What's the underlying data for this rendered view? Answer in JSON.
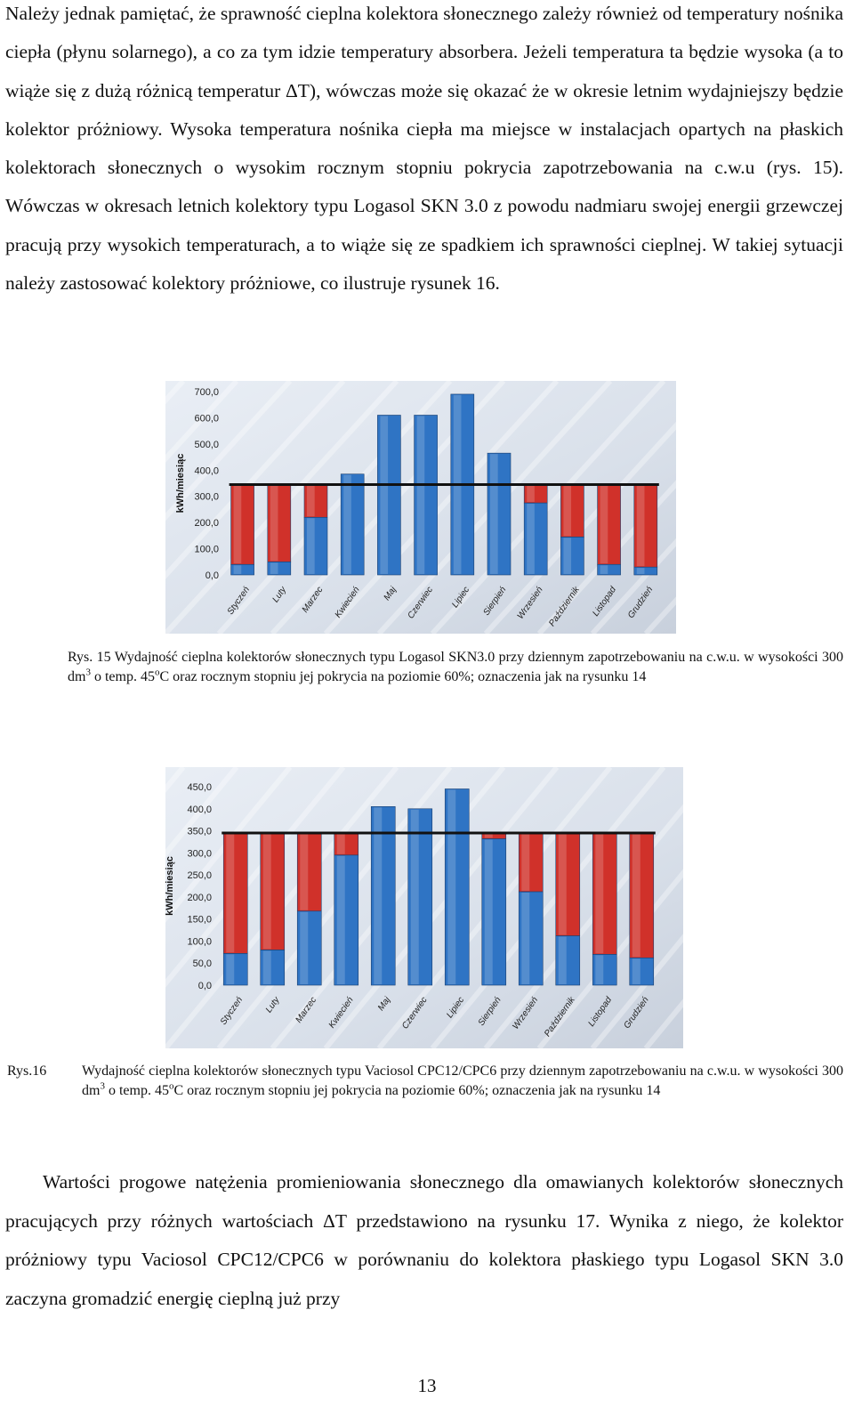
{
  "paragraph_1": "Należy jednak pamiętać, że sprawność cieplna kolektora słonecznego zależy również od temperatury nośnika ciepła (płynu solarnego), a co za tym idzie temperatury absorbera. Jeżeli temperatura ta będzie wysoka (a to wiąże się z dużą różnicą temperatur ΔT), wówczas może się okazać że w okresie letnim wydajniejszy będzie kolektor próżniowy. Wysoka temperatura nośnika ciepła ma miejsce w instalacjach opartych na płaskich kolektorach słonecznych o wysokim rocznym stopniu pokrycia zapotrzebowania na c.w.u (rys. 15). Wówczas w okresach letnich kolektory typu  Logasol SKN 3.0 z powodu nadmiaru swojej energii grzewczej pracują przy wysokich temperaturach, a to wiąże się ze spadkiem ich sprawności cieplnej. W takiej sytuacji należy zastosować kolektory próżniowe, co ilustruje rysunek 16.",
  "caption_1": {
    "part1": "Rys. 15 Wydajność cieplna kolektorów słonecznych typu Logasol SKN3.0 przy dziennym zapotrzebowaniu na c.w.u. w wysokości 300 dm",
    "sup1": "3",
    "part2": " o temp.  45",
    "sup2": "o",
    "part3": "C oraz rocznym stopniu jej pokrycia na poziomie 60%; oznaczenia jak na rysunku 14"
  },
  "caption_2": {
    "label": "Rys.16",
    "part1": "Wydajność cieplna kolektorów słonecznych typu Vaciosol CPC12/CPC6 przy dziennym zapotrzebowaniu na c.w.u. w wysokości 300 dm",
    "sup1": "3",
    "part2": " o temp.  45",
    "sup2": "o",
    "part3": "C oraz rocznym stopniu jej pokrycia na poziomie 60%; oznaczenia jak na rysunku 14"
  },
  "paragraph_2": "Wartości progowe natężenia promieniowania słonecznego dla omawianych kolektorów słonecznych pracujących przy różnych wartościach ΔT przedstawiono na rysunku 17. Wynika z niego, że kolektor próżniowy typu Vaciosol CPC12/CPC6 w porównaniu do kolektora płaskiego typu Logasol SKN 3.0 zaczyna gromadzić energię cieplną już przy",
  "page_number": "13",
  "colors": {
    "solar": "#2f74c4",
    "deficit": "#d0312a",
    "demand_line": "#111111"
  },
  "chart_data": [
    {
      "type": "bar",
      "stacked": true,
      "ylabel": "kWh/miesiąc",
      "ylim": [
        0,
        700
      ],
      "yticks": [
        "0,0",
        "100,0",
        "200,0",
        "300,0",
        "400,0",
        "500,0",
        "600,0",
        "700,0"
      ],
      "categories": [
        "Styczeń",
        "Luty",
        "Marzec",
        "Kwiecień",
        "Maj",
        "Czerwiec",
        "Lipiec",
        "Sierpień",
        "Wrzesień",
        "Październik",
        "Listopad",
        "Grudzień"
      ],
      "series": [
        {
          "color": "#2f74c4",
          "values": [
            40,
            50,
            220,
            385,
            610,
            610,
            690,
            465,
            275,
            145,
            40,
            30
          ]
        },
        {
          "color": "#d0312a",
          "values": [
            305,
            295,
            125,
            0,
            0,
            0,
            0,
            0,
            70,
            200,
            305,
            315
          ]
        }
      ],
      "demand": 345
    },
    {
      "type": "bar",
      "stacked": true,
      "ylabel": "kWh/miesiąc",
      "ylim": [
        0,
        450
      ],
      "yticks": [
        "0,0",
        "50,0",
        "100,0",
        "150,0",
        "200,0",
        "250,0",
        "300,0",
        "350,0",
        "400,0",
        "450,0"
      ],
      "categories": [
        "Styczeń",
        "Luty",
        "Marzec",
        "Kwiecień",
        "Maj",
        "Czerwiec",
        "Lipiec",
        "Sierpień",
        "Wrzesień",
        "Październik",
        "Listopad",
        "Grudzień"
      ],
      "series": [
        {
          "color": "#2f74c4",
          "values": [
            72,
            80,
            168,
            295,
            405,
            400,
            445,
            332,
            212,
            112,
            70,
            62
          ]
        },
        {
          "color": "#d0312a",
          "values": [
            273,
            265,
            177,
            50,
            0,
            0,
            0,
            13,
            133,
            233,
            275,
            283
          ]
        }
      ],
      "demand": 345
    }
  ]
}
